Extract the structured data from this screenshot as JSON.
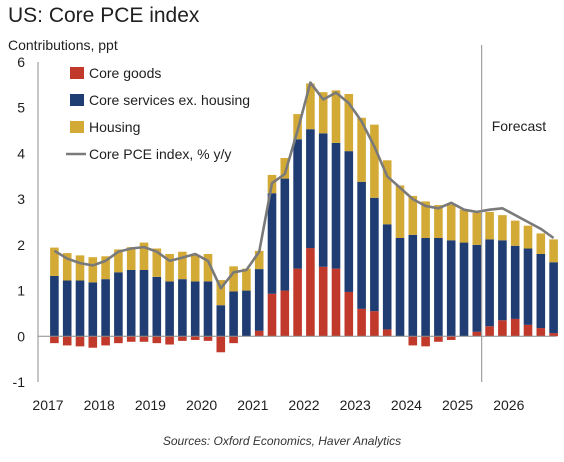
{
  "chart_data": {
    "type": "bar",
    "stacked": true,
    "title": "US: Core PCE index",
    "ylabel": "Contributions, ppt",
    "source": "Sources: Oxford Economics, Haver Analytics",
    "forecast_label": "Forecast",
    "forecast_start": "2025Q3",
    "ylim": [
      -1,
      6
    ],
    "y_ticks": [
      "6",
      "5",
      "4",
      "3",
      "2",
      "1",
      "0",
      "-1"
    ],
    "x_tick_labels": [
      "2017",
      "2018",
      "2019",
      "2020",
      "2021",
      "2022",
      "2023",
      "2024",
      "2025",
      "2026"
    ],
    "x_start": "2017Q1",
    "legend_position": "top-left",
    "categories": [
      "2017Q1",
      "2017Q2",
      "2017Q3",
      "2017Q4",
      "2018Q1",
      "2018Q2",
      "2018Q3",
      "2018Q4",
      "2019Q1",
      "2019Q2",
      "2019Q3",
      "2019Q4",
      "2020Q1",
      "2020Q2",
      "2020Q3",
      "2020Q4",
      "2021Q1",
      "2021Q2",
      "2021Q3",
      "2021Q4",
      "2022Q1",
      "2022Q2",
      "2022Q3",
      "2022Q4",
      "2023Q1",
      "2023Q2",
      "2023Q3",
      "2023Q4",
      "2024Q1",
      "2024Q2",
      "2024Q3",
      "2024Q4",
      "2025Q1",
      "2025Q2",
      "2025Q3",
      "2025Q4",
      "2026Q1",
      "2026Q2",
      "2026Q3",
      "2026Q4"
    ],
    "series": [
      {
        "name": "Core goods",
        "kind": "bar",
        "color": "#c0392b",
        "values": [
          -0.15,
          -0.2,
          -0.22,
          -0.25,
          -0.2,
          -0.15,
          -0.12,
          -0.12,
          -0.15,
          -0.18,
          -0.1,
          -0.08,
          -0.1,
          -0.35,
          -0.15,
          0.0,
          0.12,
          0.93,
          1.0,
          1.48,
          1.93,
          1.52,
          1.48,
          0.97,
          0.6,
          0.55,
          0.15,
          0.0,
          -0.2,
          -0.22,
          -0.12,
          -0.08,
          0.0,
          0.1,
          0.22,
          0.35,
          0.38,
          0.25,
          0.18,
          0.07
        ]
      },
      {
        "name": "Core services ex. housing",
        "kind": "bar",
        "color": "#1f3c73",
        "values": [
          1.32,
          1.22,
          1.22,
          1.18,
          1.25,
          1.4,
          1.45,
          1.45,
          1.3,
          1.2,
          1.25,
          1.2,
          1.2,
          0.68,
          0.98,
          1.0,
          1.35,
          2.2,
          2.45,
          2.83,
          2.6,
          2.92,
          2.75,
          3.08,
          2.78,
          2.48,
          2.3,
          2.15,
          2.22,
          2.15,
          2.15,
          2.1,
          2.05,
          1.9,
          1.9,
          1.75,
          1.6,
          1.67,
          1.62,
          1.55
        ]
      },
      {
        "name": "Housing",
        "kind": "bar",
        "color": "#d4aa36",
        "values": [
          0.62,
          0.6,
          0.55,
          0.55,
          0.5,
          0.5,
          0.5,
          0.6,
          0.62,
          0.6,
          0.6,
          0.58,
          0.6,
          0.55,
          0.55,
          0.48,
          0.4,
          0.4,
          0.45,
          0.55,
          1.0,
          0.9,
          1.15,
          1.25,
          1.4,
          1.6,
          1.4,
          1.15,
          0.85,
          0.8,
          0.72,
          0.78,
          0.72,
          0.7,
          0.6,
          0.55,
          0.55,
          0.5,
          0.45,
          0.5
        ]
      },
      {
        "name": "Core PCE index, % y/y",
        "kind": "line",
        "color": "#7a7a7a",
        "values": [
          1.87,
          1.7,
          1.6,
          1.55,
          1.65,
          1.85,
          1.92,
          1.95,
          1.85,
          1.65,
          1.72,
          1.8,
          1.65,
          1.05,
          1.4,
          1.45,
          1.85,
          3.35,
          3.55,
          4.5,
          5.55,
          5.18,
          5.33,
          5.1,
          4.7,
          4.15,
          3.5,
          3.25,
          3.0,
          2.85,
          2.8,
          2.92,
          2.77,
          2.72,
          2.77,
          2.8,
          2.65,
          2.5,
          2.35,
          2.15
        ]
      }
    ]
  }
}
